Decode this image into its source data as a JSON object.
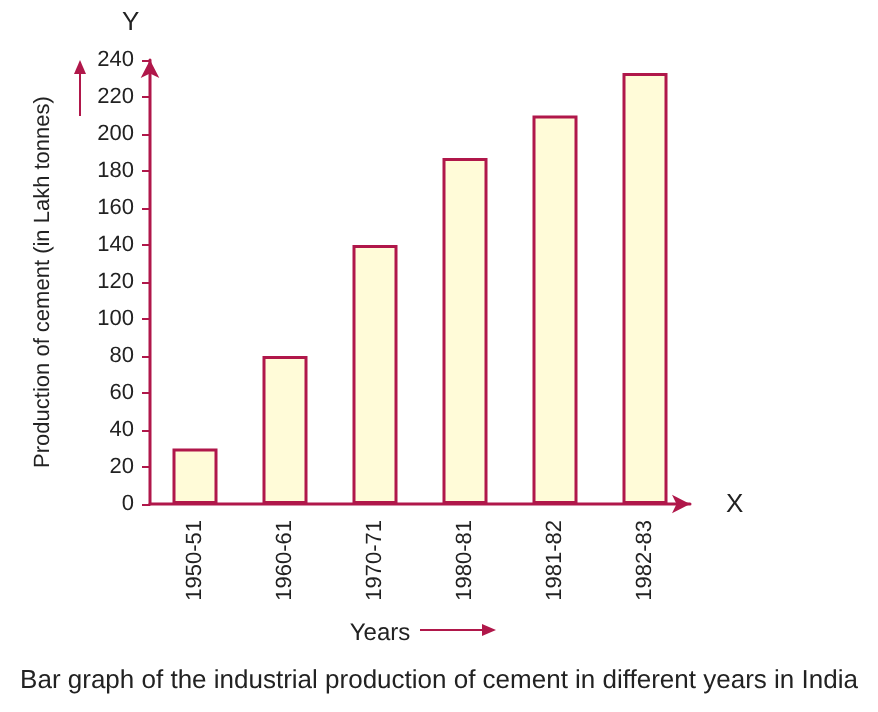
{
  "chart_data": {
    "type": "bar",
    "title": "Bar graph of the industrial production of cement in different years in India",
    "xlabel": "Years",
    "ylabel": "Production of cement (in Lakh tonnes)",
    "categories": [
      "1950-51",
      "1960-61",
      "1970-71",
      "1980-81",
      "1981-82",
      "1982-83"
    ],
    "values": [
      30,
      80,
      140,
      187,
      210,
      233
    ],
    "color": "#fffbd8",
    "ylim": [
      0,
      240
    ],
    "yticks": [
      0,
      20,
      40,
      60,
      80,
      100,
      120,
      140,
      160,
      180,
      200,
      220,
      240
    ],
    "grid": false,
    "annotations": [
      "Y",
      "X"
    ]
  }
}
